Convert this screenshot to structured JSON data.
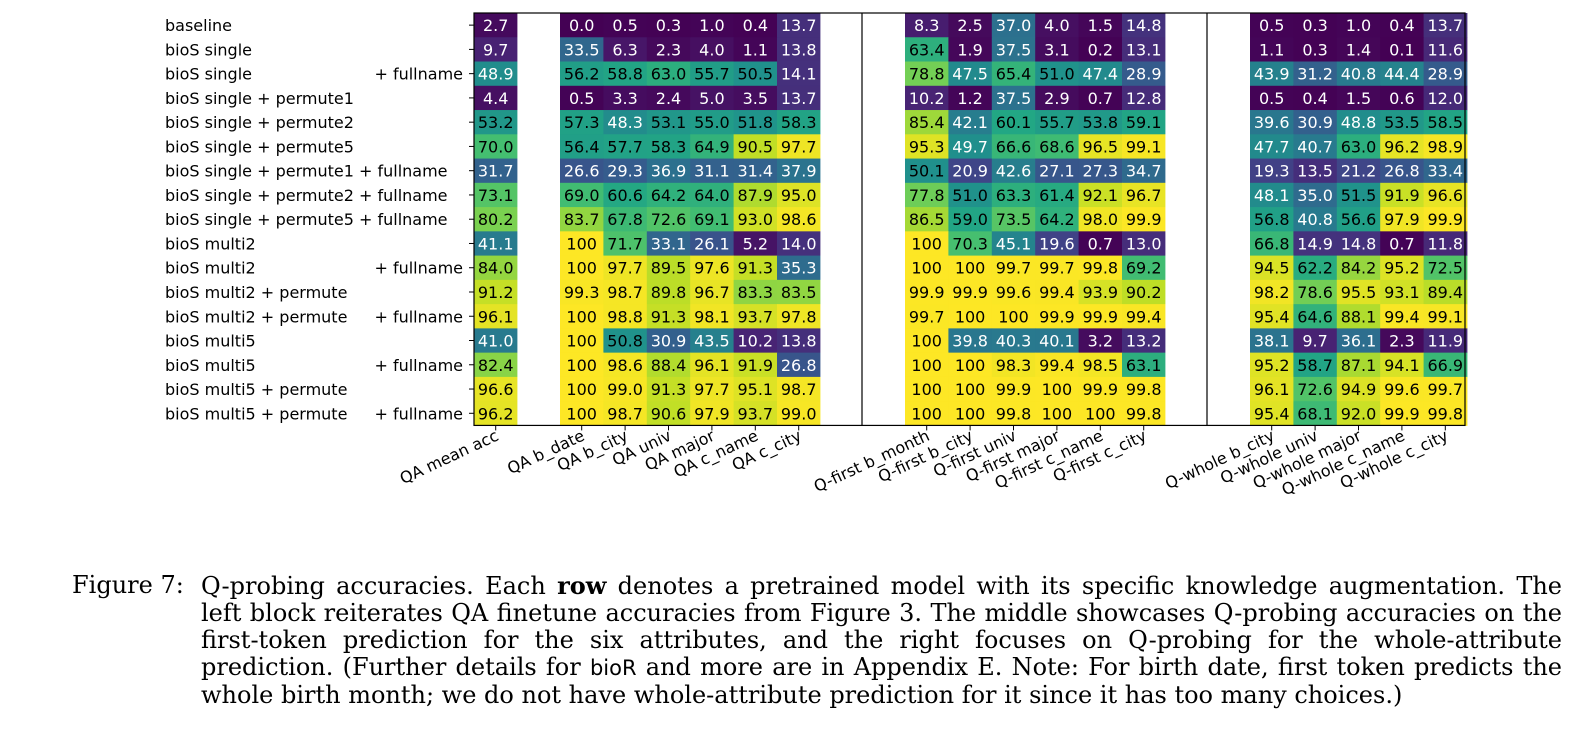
{
  "chart_data": {
    "type": "heatmap",
    "colormap": "viridis",
    "value_range": [
      0,
      100
    ],
    "rows": [
      {
        "main": "baseline",
        "suffix": ""
      },
      {
        "main": "bioS single",
        "suffix": ""
      },
      {
        "main": "bioS single",
        "suffix": "+ fullname"
      },
      {
        "main": "bioS single + permute1",
        "suffix": ""
      },
      {
        "main": "bioS single + permute2",
        "suffix": ""
      },
      {
        "main": "bioS single + permute5",
        "suffix": ""
      },
      {
        "main": "bioS single + permute1 + fullname",
        "suffix": ""
      },
      {
        "main": "bioS single + permute2 + fullname",
        "suffix": ""
      },
      {
        "main": "bioS single + permute5 + fullname",
        "suffix": ""
      },
      {
        "main": "bioS multi2",
        "suffix": ""
      },
      {
        "main": "bioS multi2",
        "suffix": "+ fullname"
      },
      {
        "main": "bioS multi2 + permute",
        "suffix": ""
      },
      {
        "main": "bioS multi2 + permute",
        "suffix": "+ fullname"
      },
      {
        "main": "bioS multi5",
        "suffix": ""
      },
      {
        "main": "bioS multi5",
        "suffix": "+ fullname"
      },
      {
        "main": "bioS multi5 + permute",
        "suffix": ""
      },
      {
        "main": "bioS multi5 + permute",
        "suffix": "+ fullname"
      }
    ],
    "blocks": [
      {
        "columns": [
          "QA mean acc"
        ],
        "values": [
          [
            "2.7"
          ],
          [
            "9.7"
          ],
          [
            "48.9"
          ],
          [
            "4.4"
          ],
          [
            "53.2"
          ],
          [
            "70.0"
          ],
          [
            "31.7"
          ],
          [
            "73.1"
          ],
          [
            "80.2"
          ],
          [
            "41.1"
          ],
          [
            "84.0"
          ],
          [
            "91.2"
          ],
          [
            "96.1"
          ],
          [
            "41.0"
          ],
          [
            "82.4"
          ],
          [
            "96.6"
          ],
          [
            "96.2"
          ]
        ]
      },
      {
        "columns": [
          "QA b_date",
          "QA b_city",
          "QA univ",
          "QA major",
          "QA c_name",
          "QA c_city"
        ],
        "values": [
          [
            "0.0",
            "0.5",
            "0.3",
            "1.0",
            "0.4",
            "13.7"
          ],
          [
            "33.5",
            "6.3",
            "2.3",
            "4.0",
            "1.1",
            "13.8"
          ],
          [
            "56.2",
            "58.8",
            "63.0",
            "55.7",
            "50.5",
            "14.1"
          ],
          [
            "0.5",
            "3.3",
            "2.4",
            "5.0",
            "3.5",
            "13.7"
          ],
          [
            "57.3",
            "48.3",
            "53.1",
            "55.0",
            "51.8",
            "58.3"
          ],
          [
            "56.4",
            "57.7",
            "58.3",
            "64.9",
            "90.5",
            "97.7"
          ],
          [
            "26.6",
            "29.3",
            "36.9",
            "31.1",
            "31.4",
            "37.9"
          ],
          [
            "69.0",
            "60.6",
            "64.2",
            "64.0",
            "87.9",
            "95.0"
          ],
          [
            "83.7",
            "67.8",
            "72.6",
            "69.1",
            "93.0",
            "98.6"
          ],
          [
            "100",
            "71.7",
            "33.1",
            "26.1",
            "5.2",
            "14.0"
          ],
          [
            "100",
            "97.7",
            "89.5",
            "97.6",
            "91.3",
            "35.3"
          ],
          [
            "99.3",
            "98.7",
            "89.8",
            "96.7",
            "83.3",
            "83.5"
          ],
          [
            "100",
            "98.8",
            "91.3",
            "98.1",
            "93.7",
            "97.8"
          ],
          [
            "100",
            "50.8",
            "30.9",
            "43.5",
            "10.2",
            "13.8"
          ],
          [
            "100",
            "98.6",
            "88.4",
            "96.1",
            "91.9",
            "26.8"
          ],
          [
            "100",
            "99.0",
            "91.3",
            "97.7",
            "95.1",
            "98.7"
          ],
          [
            "100",
            "98.7",
            "90.6",
            "97.9",
            "93.7",
            "99.0"
          ]
        ]
      },
      {
        "columns": [
          "Q-first b_month",
          "Q-first b_city",
          "Q-first univ",
          "Q-first major",
          "Q-first c_name",
          "Q-first c_city"
        ],
        "values": [
          [
            "8.3",
            "2.5",
            "37.0",
            "4.0",
            "1.5",
            "14.8"
          ],
          [
            "63.4",
            "1.9",
            "37.5",
            "3.1",
            "0.2",
            "13.1"
          ],
          [
            "78.8",
            "47.5",
            "65.4",
            "51.0",
            "47.4",
            "28.9"
          ],
          [
            "10.2",
            "1.2",
            "37.5",
            "2.9",
            "0.7",
            "12.8"
          ],
          [
            "85.4",
            "42.1",
            "60.1",
            "55.7",
            "53.8",
            "59.1"
          ],
          [
            "95.3",
            "49.7",
            "66.6",
            "68.6",
            "96.5",
            "99.1"
          ],
          [
            "50.1",
            "20.9",
            "42.6",
            "27.1",
            "27.3",
            "34.7"
          ],
          [
            "77.8",
            "51.0",
            "63.3",
            "61.4",
            "92.1",
            "96.7"
          ],
          [
            "86.5",
            "59.0",
            "73.5",
            "64.2",
            "98.0",
            "99.9"
          ],
          [
            "100",
            "70.3",
            "45.1",
            "19.6",
            "0.7",
            "13.0"
          ],
          [
            "100",
            "100",
            "99.7",
            "99.7",
            "99.8",
            "69.2"
          ],
          [
            "99.9",
            "99.9",
            "99.6",
            "99.4",
            "93.9",
            "90.2"
          ],
          [
            "99.7",
            "100",
            "100",
            "99.9",
            "99.9",
            "99.4"
          ],
          [
            "100",
            "39.8",
            "40.3",
            "40.1",
            "3.2",
            "13.2"
          ],
          [
            "100",
            "100",
            "98.3",
            "99.4",
            "98.5",
            "63.1"
          ],
          [
            "100",
            "100",
            "99.9",
            "100",
            "99.9",
            "99.8"
          ],
          [
            "100",
            "100",
            "99.8",
            "100",
            "100",
            "99.8"
          ]
        ]
      },
      {
        "columns": [
          "Q-whole b_city",
          "Q-whole univ",
          "Q-whole major",
          "Q-whole c_name",
          "Q-whole c_city"
        ],
        "values": [
          [
            "0.5",
            "0.3",
            "1.0",
            "0.4",
            "13.7"
          ],
          [
            "1.1",
            "0.3",
            "1.4",
            "0.1",
            "11.6"
          ],
          [
            "43.9",
            "31.2",
            "40.8",
            "44.4",
            "28.9"
          ],
          [
            "0.5",
            "0.4",
            "1.5",
            "0.6",
            "12.0"
          ],
          [
            "39.6",
            "30.9",
            "48.8",
            "53.5",
            "58.5"
          ],
          [
            "47.7",
            "40.7",
            "63.0",
            "96.2",
            "98.9"
          ],
          [
            "19.3",
            "13.5",
            "21.2",
            "26.8",
            "33.4"
          ],
          [
            "48.1",
            "35.0",
            "51.5",
            "91.9",
            "96.6"
          ],
          [
            "56.8",
            "40.8",
            "56.6",
            "97.9",
            "99.9"
          ],
          [
            "66.8",
            "14.9",
            "14.8",
            "0.7",
            "11.8"
          ],
          [
            "94.5",
            "62.2",
            "84.2",
            "95.2",
            "72.5"
          ],
          [
            "98.2",
            "78.6",
            "95.5",
            "93.1",
            "89.4"
          ],
          [
            "95.4",
            "64.6",
            "88.1",
            "99.4",
            "99.1"
          ],
          [
            "38.1",
            "9.7",
            "36.1",
            "2.3",
            "11.9"
          ],
          [
            "95.2",
            "58.7",
            "87.1",
            "94.1",
            "66.9"
          ],
          [
            "96.1",
            "72.6",
            "94.9",
            "99.6",
            "99.7"
          ],
          [
            "95.4",
            "68.1",
            "92.0",
            "99.9",
            "99.8"
          ]
        ]
      }
    ]
  },
  "caption": {
    "label": "Figure 7:",
    "part1": "Q-probing accuracies. Each ",
    "bold": "row",
    "part2": " denotes a pretrained model with its specific knowledge augmentation. The left block reiterates QA finetune accuracies from Figure 3. The middle showcases Q-probing accuracies on the first-token prediction for the six attributes, and the right focuses on Q-probing for the whole-attribute prediction. (Further details for ",
    "sans": "bioR",
    "part3": " and more are in Appendix E. Note: For birth date, first token predicts the whole birth month; we do not have whole-attribute prediction for it since it has too many choices.)"
  }
}
